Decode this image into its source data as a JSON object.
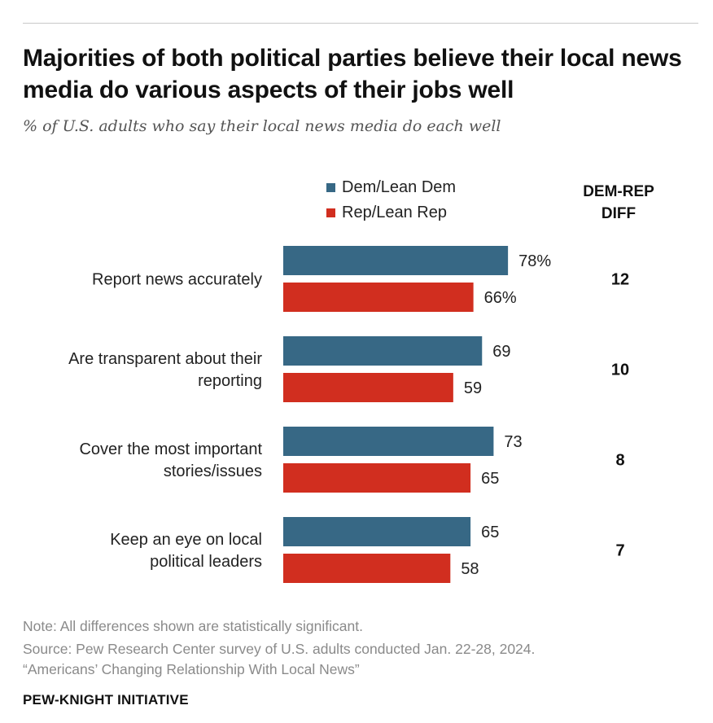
{
  "title": "Majorities of both political parties believe their local news media do various aspects of their jobs well",
  "subtitle": "% of U.S. adults who say their local news media do each well",
  "legend": {
    "dem": "Dem/Lean Dem",
    "rep": "Rep/Lean Rep"
  },
  "diff_header": {
    "line1": "DEM-REP",
    "line2": "DIFF"
  },
  "colors": {
    "dem": "#376885",
    "rep": "#d12e1f"
  },
  "notes": {
    "note": "Note: All differences shown are statistically significant.",
    "source": "Source: Pew Research Center survey of U.S. adults conducted Jan. 22-28, 2024.",
    "report": "“Americans’ Changing Relationship With Local News”"
  },
  "brand": "PEW-KNIGHT INITIATIVE",
  "chart_data": {
    "type": "bar",
    "orientation": "horizontal",
    "title": "Majorities of both political parties believe their local news media do various aspects of their jobs well",
    "subtitle": "% of U.S. adults who say their local news media do each well",
    "categories": [
      [
        "Report news accurately"
      ],
      [
        "Are transparent about their",
        "reporting"
      ],
      [
        "Cover the most important",
        "stories/issues"
      ],
      [
        "Keep an eye on local",
        "political leaders"
      ]
    ],
    "series": [
      {
        "name": "Dem/Lean Dem",
        "values": [
          78,
          69,
          73,
          65
        ],
        "labels": [
          "78%",
          "69",
          "73",
          "65"
        ]
      },
      {
        "name": "Rep/Lean Rep",
        "values": [
          66,
          59,
          65,
          58
        ],
        "labels": [
          "66%",
          "59",
          "65",
          "58"
        ]
      }
    ],
    "diff": [
      12,
      10,
      8,
      7
    ],
    "xlim": [
      0,
      100
    ],
    "grid": false,
    "legend": "top"
  }
}
